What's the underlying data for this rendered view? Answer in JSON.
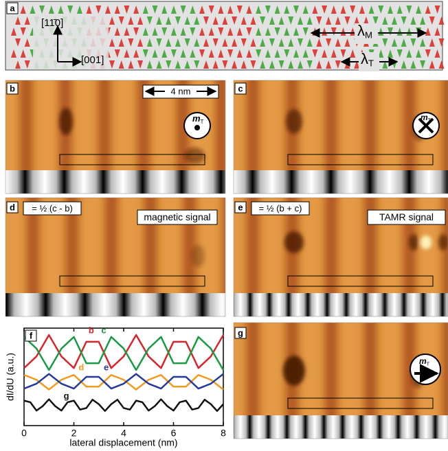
{
  "panels": {
    "a": {
      "label": "a",
      "direction_vertical": "[11̄0]",
      "direction_horizontal": "[001]",
      "lambda_m": {
        "symbol": "λ",
        "subscript": "M"
      },
      "lambda_t": {
        "symbol": "λ",
        "subscript": "T"
      }
    },
    "b": {
      "label": "b",
      "scale_bar": "4 nm",
      "moment": {
        "symbol": "m",
        "subscript": "T"
      }
    },
    "c": {
      "label": "c",
      "moment": {
        "symbol": "m",
        "subscript": "T"
      }
    },
    "d": {
      "label": "d",
      "formula": "= ½ (c - b)",
      "caption": "magnetic signal"
    },
    "e": {
      "label": "e",
      "formula": "= ½ (b + c)",
      "caption": "TAMR signal"
    },
    "f": {
      "label": "f"
    },
    "g": {
      "label": "g",
      "moment": {
        "symbol": "m",
        "subscript": "T"
      }
    }
  },
  "chart_data": {
    "type": "line",
    "x_label": "lateral displacement (nm)",
    "y_label": "dI/dU (a.u.)",
    "xlim": [
      0,
      8
    ],
    "xticks": [
      0,
      2,
      4,
      6,
      8
    ],
    "ylim": [
      0,
      10
    ],
    "series": [
      {
        "name": "b",
        "color": "#d7262b",
        "x": [
          0,
          0.5,
          1,
          1.5,
          2,
          2.5,
          3,
          3.5,
          4,
          4.5,
          5,
          5.5,
          6,
          6.5,
          7,
          7.5,
          8
        ],
        "values": [
          5.9,
          7.1,
          9.3,
          7.1,
          5.9,
          8.6,
          8.6,
          5.9,
          7.1,
          9.3,
          7.1,
          5.9,
          8.6,
          8.6,
          5.9,
          7.1,
          9.3
        ]
      },
      {
        "name": "c",
        "color": "#1a9a45",
        "x": [
          0,
          0.5,
          1,
          1.5,
          2,
          2.5,
          3,
          3.5,
          4,
          4.5,
          5,
          5.5,
          6,
          6.5,
          7,
          7.5,
          8
        ],
        "values": [
          9.1,
          7.9,
          5.7,
          7.9,
          9.1,
          6.4,
          6.4,
          9.1,
          7.9,
          5.7,
          7.9,
          9.1,
          6.4,
          6.4,
          9.1,
          7.9,
          5.7
        ]
      },
      {
        "name": "d",
        "color": "#f39a1f",
        "x": [
          0,
          0.5,
          1,
          1.5,
          2,
          2.5,
          3,
          3.5,
          4,
          4.5,
          5,
          5.5,
          6,
          6.5,
          7,
          7.5,
          8
        ],
        "values": [
          5.2,
          4.7,
          3.7,
          4.7,
          5.2,
          4.0,
          4.0,
          5.2,
          4.7,
          3.7,
          4.7,
          5.2,
          4.0,
          4.0,
          5.2,
          4.7,
          3.7
        ]
      },
      {
        "name": "e",
        "color": "#27399a",
        "x": [
          0,
          0.5,
          1,
          1.5,
          2,
          2.5,
          3,
          3.5,
          4,
          4.5,
          5,
          5.5,
          6,
          6.5,
          7,
          7.5,
          8
        ],
        "values": [
          3.8,
          4.3,
          5.3,
          4.3,
          3.8,
          5.0,
          5.0,
          3.8,
          4.3,
          5.3,
          4.3,
          3.8,
          5.0,
          5.0,
          3.8,
          4.3,
          5.3
        ]
      },
      {
        "name": "g",
        "color": "#111111",
        "x": [
          0,
          0.25,
          0.5,
          0.75,
          1,
          1.25,
          1.5,
          1.75,
          2,
          2.25,
          2.5,
          2.75,
          3,
          3.25,
          3.5,
          3.75,
          4,
          4.25,
          4.5,
          4.75,
          5,
          5.25,
          5.5,
          5.75,
          6,
          6.25,
          6.5,
          6.75,
          7,
          7.25,
          7.5,
          7.75,
          8
        ],
        "values": [
          2.56,
          2.4,
          1.54,
          2.0,
          2.7,
          2.0,
          1.54,
          2.4,
          2.56,
          1.64,
          1.8,
          2.66,
          2.2,
          1.5,
          2.2,
          2.66,
          1.8,
          1.64,
          2.56,
          2.4,
          1.54,
          2.0,
          2.7,
          2.0,
          1.54,
          2.4,
          2.56,
          1.64,
          1.8,
          2.66,
          2.2,
          1.5,
          2.2
        ]
      }
    ]
  }
}
